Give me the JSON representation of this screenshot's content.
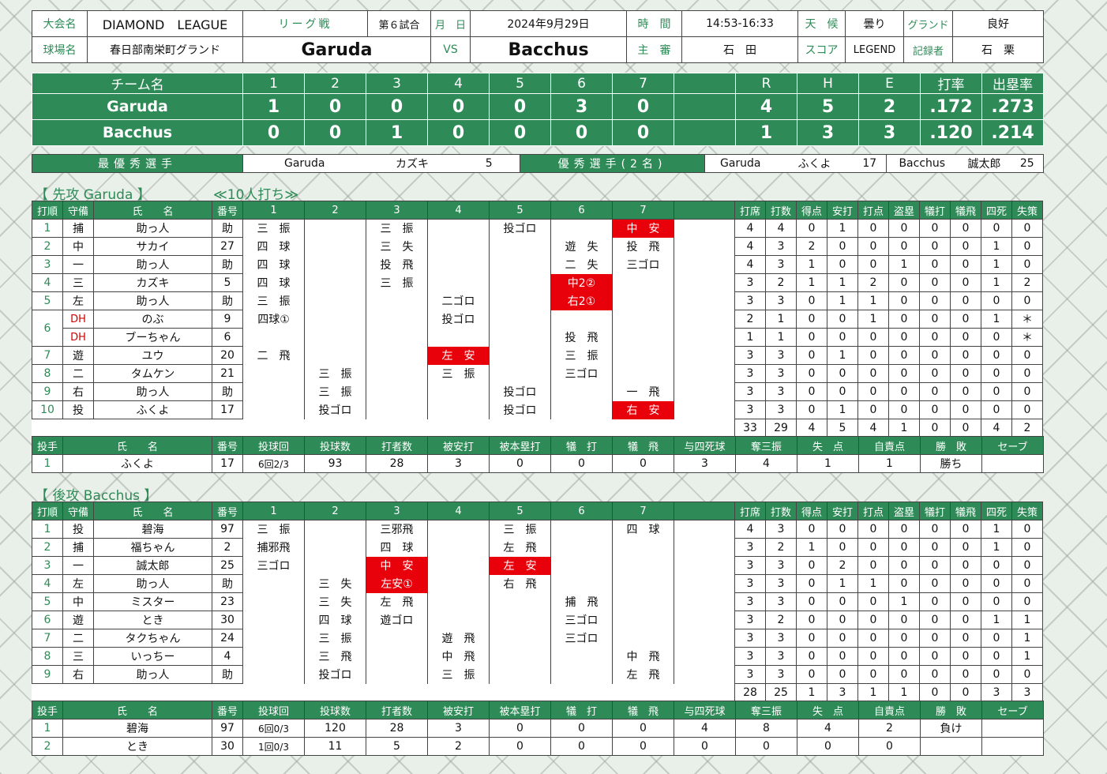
{
  "info": {
    "taikai_label": "大会名",
    "taikai": "DIAMOND　LEAGUE",
    "league": "リーグ戦",
    "game_no": "第６試合",
    "date_label": "月　日",
    "date": "2024年9月29日",
    "time_label": "時　間",
    "time": "14:53-16:33",
    "weather_label": "天　候",
    "weather": "曇り",
    "ground_label": "グランド",
    "ground": "良好",
    "field_label": "球場名",
    "field": "春日部南栄町グランド",
    "team_a": "Garuda",
    "vs": "VS",
    "team_b": "Bacchus",
    "umpire_label": "主　審",
    "umpire": "石　田",
    "score_label": "スコア",
    "scorer": "LEGEND",
    "recorder_label": "記録者",
    "recorder": "石　栗"
  },
  "scoreboard": {
    "head": [
      "チーム名",
      "1",
      "2",
      "3",
      "4",
      "5",
      "6",
      "7",
      "",
      "R",
      "H",
      "E",
      "打率",
      "出塁率"
    ],
    "rows": [
      [
        "Garuda",
        "1",
        "0",
        "0",
        "0",
        "0",
        "3",
        "0",
        "",
        "4",
        "5",
        "2",
        ".172",
        ".273"
      ],
      [
        "Bacchus",
        "0",
        "0",
        "1",
        "0",
        "0",
        "0",
        "0",
        "",
        "1",
        "3",
        "3",
        ".120",
        ".214"
      ]
    ]
  },
  "awards": {
    "mvp_label": "最優秀選手",
    "mvp_team": "Garuda",
    "mvp_name": "カズキ",
    "mvp_no": "5",
    "excellent_label": "優秀選手(2名)",
    "ex1_team": "Garuda",
    "ex1_name": "ふくよ",
    "ex1_no": "17",
    "ex2_team": "Bacchus",
    "ex2_name": "誠太郎",
    "ex2_no": "25"
  },
  "section_a": "【 先攻 Garuda 】",
  "section_a_note": "≪10人打ち≫",
  "section_b": "【 後攻 Bacchus 】",
  "bat_head": [
    "打順",
    "守備",
    "氏　　名",
    "番号",
    "1",
    "2",
    "3",
    "4",
    "5",
    "6",
    "7",
    "",
    "打席",
    "打数",
    "得点",
    "安打",
    "打点",
    "盗塁",
    "犠打",
    "犠飛",
    "四死",
    "失策"
  ],
  "pit_head": [
    "投手",
    "氏　　名",
    "番号",
    "投球回",
    "投球数",
    "打者数",
    "被安打",
    "被本塁打",
    "犠　打",
    "犠　飛",
    "与四死球",
    "奪三振",
    "失　点",
    "自責点",
    "勝　敗",
    "セーブ"
  ],
  "batting_a": [
    [
      "1",
      "捕",
      "助っ人",
      "助",
      "三　振",
      "",
      "三　振",
      "",
      "投ゴロ",
      "",
      "中　安",
      "",
      "4",
      "4",
      "0",
      "1",
      "0",
      "0",
      "0",
      "0",
      "0",
      "0"
    ],
    [
      "2",
      "中",
      "サカイ",
      "27",
      "四　球",
      "",
      "三　失",
      "",
      "",
      "遊　失",
      "投　飛",
      "",
      "4",
      "3",
      "2",
      "0",
      "0",
      "0",
      "0",
      "0",
      "1",
      "0"
    ],
    [
      "3",
      "一",
      "助っ人",
      "助",
      "四　球",
      "",
      "投　飛",
      "",
      "",
      "二　失",
      "三ゴロ",
      "",
      "4",
      "3",
      "1",
      "0",
      "0",
      "1",
      "0",
      "0",
      "1",
      "0"
    ],
    [
      "4",
      "三",
      "カズキ",
      "5",
      "四　球",
      "",
      "三　振",
      "",
      "",
      "中2②",
      "",
      "",
      "3",
      "2",
      "1",
      "1",
      "2",
      "0",
      "0",
      "0",
      "1",
      "2"
    ],
    [
      "5",
      "左",
      "助っ人",
      "助",
      "三　振",
      "",
      "",
      "二ゴロ",
      "",
      "右2①",
      "",
      "",
      "3",
      "3",
      "0",
      "1",
      "1",
      "0",
      "0",
      "0",
      "0",
      "0"
    ],
    [
      "6",
      "DH",
      "のぶ",
      "9",
      "四球①",
      "",
      "",
      "投ゴロ",
      "",
      "",
      "",
      "",
      "2",
      "1",
      "0",
      "0",
      "1",
      "0",
      "0",
      "0",
      "1",
      "＊"
    ],
    [
      "",
      "DH",
      "ブーちゃん",
      "6",
      "",
      "",
      "",
      "",
      "",
      "投　飛",
      "",
      "",
      "1",
      "1",
      "0",
      "0",
      "0",
      "0",
      "0",
      "0",
      "0",
      "＊"
    ],
    [
      "7",
      "遊",
      "ユウ",
      "20",
      "二　飛",
      "",
      "",
      "左　安",
      "",
      "三　振",
      "",
      "",
      "3",
      "3",
      "0",
      "1",
      "0",
      "0",
      "0",
      "0",
      "0",
      "0"
    ],
    [
      "8",
      "二",
      "タムケン",
      "21",
      "",
      "三　振",
      "",
      "三　振",
      "",
      "三ゴロ",
      "",
      "",
      "3",
      "3",
      "0",
      "0",
      "0",
      "0",
      "0",
      "0",
      "0",
      "0"
    ],
    [
      "9",
      "右",
      "助っ人",
      "助",
      "",
      "三　振",
      "",
      "",
      "投ゴロ",
      "",
      "一　飛",
      "",
      "3",
      "3",
      "0",
      "0",
      "0",
      "0",
      "0",
      "0",
      "0",
      "0"
    ],
    [
      "10",
      "投",
      "ふくよ",
      "17",
      "",
      "投ゴロ",
      "",
      "",
      "投ゴロ",
      "",
      "右　安",
      "",
      "3",
      "3",
      "0",
      "1",
      "0",
      "0",
      "0",
      "0",
      "0",
      "0"
    ]
  ],
  "totals_a": [
    "33",
    "29",
    "4",
    "5",
    "4",
    "1",
    "0",
    "0",
    "4",
    "2"
  ],
  "pitching_a": [
    [
      "1",
      "ふくよ",
      "17",
      "6回2/3",
      "93",
      "28",
      "3",
      "0",
      "0",
      "0",
      "3",
      "4",
      "1",
      "1",
      "勝ち",
      ""
    ]
  ],
  "batting_b": [
    [
      "1",
      "投",
      "碧海",
      "97",
      "三　振",
      "",
      "三邪飛",
      "",
      "三　振",
      "",
      "四　球",
      "",
      "4",
      "3",
      "0",
      "0",
      "0",
      "0",
      "0",
      "0",
      "1",
      "0"
    ],
    [
      "2",
      "捕",
      "福ちゃん",
      "2",
      "捕邪飛",
      "",
      "四　球",
      "",
      "左　飛",
      "",
      "",
      "",
      "3",
      "2",
      "1",
      "0",
      "0",
      "0",
      "0",
      "0",
      "1",
      "0"
    ],
    [
      "3",
      "一",
      "誠太郎",
      "25",
      "三ゴロ",
      "",
      "中　安",
      "",
      "左　安",
      "",
      "",
      "",
      "3",
      "3",
      "0",
      "2",
      "0",
      "0",
      "0",
      "0",
      "0",
      "0"
    ],
    [
      "4",
      "左",
      "助っ人",
      "助",
      "",
      "三　失",
      "左安①",
      "",
      "右　飛",
      "",
      "",
      "",
      "3",
      "3",
      "0",
      "1",
      "1",
      "0",
      "0",
      "0",
      "0",
      "0"
    ],
    [
      "5",
      "中",
      "ミスター",
      "23",
      "",
      "三　失",
      "左　飛",
      "",
      "",
      "捕　飛",
      "",
      "",
      "3",
      "3",
      "0",
      "0",
      "0",
      "1",
      "0",
      "0",
      "0",
      "0"
    ],
    [
      "6",
      "遊",
      "とき",
      "30",
      "",
      "四　球",
      "遊ゴロ",
      "",
      "",
      "三ゴロ",
      "",
      "",
      "3",
      "2",
      "0",
      "0",
      "0",
      "0",
      "0",
      "0",
      "1",
      "1"
    ],
    [
      "7",
      "二",
      "タクちゃん",
      "24",
      "",
      "三　振",
      "",
      "遊　飛",
      "",
      "三ゴロ",
      "",
      "",
      "3",
      "3",
      "0",
      "0",
      "0",
      "0",
      "0",
      "0",
      "0",
      "1"
    ],
    [
      "8",
      "三",
      "いっちー",
      "4",
      "",
      "三　飛",
      "",
      "中　飛",
      "",
      "",
      "中　飛",
      "",
      "3",
      "3",
      "0",
      "0",
      "0",
      "0",
      "0",
      "0",
      "0",
      "1"
    ],
    [
      "9",
      "右",
      "助っ人",
      "助",
      "",
      "投ゴロ",
      "",
      "三　振",
      "",
      "",
      "左　飛",
      "",
      "3",
      "3",
      "0",
      "0",
      "0",
      "0",
      "0",
      "0",
      "0",
      "0"
    ]
  ],
  "totals_b": [
    "28",
    "25",
    "1",
    "3",
    "1",
    "1",
    "0",
    "0",
    "3",
    "3"
  ],
  "pitching_b": [
    [
      "1",
      "碧海",
      "97",
      "6回0/3",
      "120",
      "28",
      "3",
      "0",
      "0",
      "0",
      "4",
      "8",
      "4",
      "2",
      "負け",
      ""
    ],
    [
      "2",
      "とき",
      "30",
      "1回0/3",
      "11",
      "5",
      "2",
      "0",
      "0",
      "0",
      "0",
      "0",
      "0",
      "0",
      "",
      ""
    ]
  ],
  "hits_a": [
    [
      0,
      10
    ],
    [
      3,
      9
    ],
    [
      4,
      9
    ],
    [
      7,
      7
    ],
    [
      10,
      10
    ]
  ],
  "hits_b": [
    [
      2,
      6
    ],
    [
      3,
      6
    ],
    [
      2,
      8
    ]
  ],
  "colors": {
    "green": "#2e8b57",
    "hit_red": "#e8000b"
  }
}
